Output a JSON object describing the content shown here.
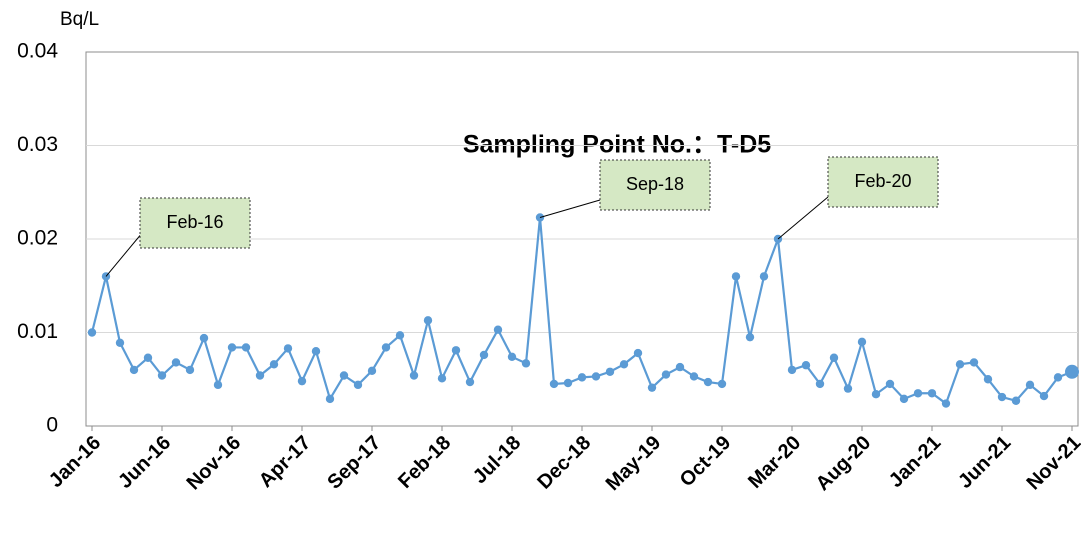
{
  "chart_data": {
    "type": "line",
    "title": "Sampling Point No.：T-D5",
    "y_axis_label": "Bq/L",
    "x": [
      "2016-01",
      "2016-02",
      "2016-03",
      "2016-04",
      "2016-05",
      "2016-06",
      "2016-07",
      "2016-08",
      "2016-09",
      "2016-10",
      "2016-11",
      "2016-12",
      "2017-01",
      "2017-02",
      "2017-03",
      "2017-04",
      "2017-05",
      "2017-06",
      "2017-07",
      "2017-08",
      "2017-09",
      "2017-10",
      "2017-11",
      "2017-12",
      "2018-01",
      "2018-02",
      "2018-03",
      "2018-04",
      "2018-05",
      "2018-06",
      "2018-07",
      "2018-08",
      "2018-09",
      "2018-10",
      "2018-11",
      "2018-12",
      "2019-01",
      "2019-02",
      "2019-03",
      "2019-04",
      "2019-05",
      "2019-06",
      "2019-07",
      "2019-08",
      "2019-09",
      "2019-10",
      "2019-11",
      "2019-12",
      "2020-01",
      "2020-02",
      "2020-03",
      "2020-04",
      "2020-05",
      "2020-06",
      "2020-07",
      "2020-08",
      "2020-09",
      "2020-10",
      "2020-11",
      "2020-12",
      "2021-01",
      "2021-02",
      "2021-03",
      "2021-04",
      "2021-05",
      "2021-06",
      "2021-07",
      "2021-08",
      "2021-09",
      "2021-10",
      "2021-11"
    ],
    "xticks": [
      {
        "value": "2016-01",
        "label": "Jan-16"
      },
      {
        "value": "2016-06",
        "label": "Jun-16"
      },
      {
        "value": "2016-11",
        "label": "Nov-16"
      },
      {
        "value": "2017-04",
        "label": "Apr-17"
      },
      {
        "value": "2017-09",
        "label": "Sep-17"
      },
      {
        "value": "2018-02",
        "label": "Feb-18"
      },
      {
        "value": "2018-07",
        "label": "Jul-18"
      },
      {
        "value": "2018-12",
        "label": "Dec-18"
      },
      {
        "value": "2019-05",
        "label": "May-19"
      },
      {
        "value": "2019-10",
        "label": "Oct-19"
      },
      {
        "value": "2020-03",
        "label": "Mar-20"
      },
      {
        "value": "2020-08",
        "label": "Aug-20"
      },
      {
        "value": "2021-01",
        "label": "Jan-21"
      },
      {
        "value": "2021-06",
        "label": "Jun-21"
      },
      {
        "value": "2021-11",
        "label": "Nov-21"
      }
    ],
    "series": [
      {
        "color": "#5b9bd5",
        "values": [
          0.01,
          0.016,
          0.0089,
          0.006,
          0.0073,
          0.0054,
          0.0068,
          0.006,
          0.0094,
          0.0044,
          0.0084,
          0.0084,
          0.0054,
          0.0066,
          0.0083,
          0.0048,
          0.008,
          0.0029,
          0.0054,
          0.0044,
          0.0059,
          0.0084,
          0.0097,
          0.0054,
          0.0113,
          0.0051,
          0.0081,
          0.0047,
          0.0076,
          0.0103,
          0.0074,
          0.0067,
          0.0223,
          0.0045,
          0.0046,
          0.0052,
          0.0053,
          0.0058,
          0.0066,
          0.0078,
          0.0041,
          0.0055,
          0.0063,
          0.0053,
          0.0047,
          0.0045,
          0.016,
          0.0095,
          0.016,
          0.02,
          0.006,
          0.0065,
          0.0045,
          0.0073,
          0.004,
          0.009,
          0.0034,
          0.0045,
          0.0029,
          0.0035,
          0.0035,
          0.0024,
          0.0066,
          0.0068,
          0.005,
          0.0031,
          0.0027,
          0.0044,
          0.0032,
          0.0052,
          0.0058
        ]
      }
    ],
    "ylim": [
      0,
      0.04
    ],
    "yticks": [
      0,
      0.01,
      0.02,
      0.03,
      0.04
    ],
    "grid": true,
    "annotations": [
      {
        "x": "2016-02",
        "text": "Feb-16"
      },
      {
        "x": "2018-09",
        "text": "Sep-18"
      },
      {
        "x": "2020-02",
        "text": "Feb-20"
      }
    ]
  }
}
